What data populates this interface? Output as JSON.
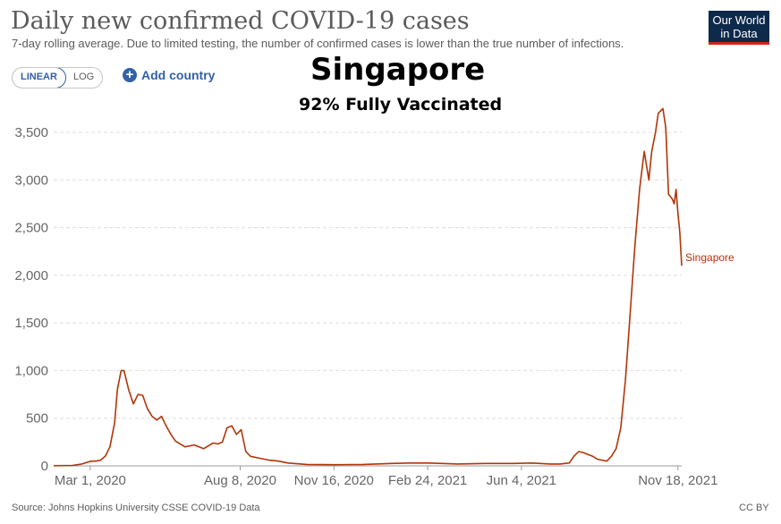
{
  "header": {
    "title": "Daily new confirmed COVID-19 cases",
    "subtitle": "7-day rolling average. Due to limited testing, the number of confirmed cases is lower than the true number of infections.",
    "logo_line1": "Our World",
    "logo_line2": "in Data"
  },
  "controls": {
    "linear_label": "LINEAR",
    "log_label": "LOG",
    "add_country_label": "Add country",
    "add_icon": "plus-circle-icon"
  },
  "overlay": {
    "heading": "Singapore",
    "subheading": "92% Fully Vaccinated"
  },
  "footer": {
    "source": "Source: Johns Hopkins University CSSE COVID-19 Data",
    "license": "CC BY"
  },
  "colors": {
    "series": "#b13507",
    "accent": "#3360a9",
    "grid": "#dddddd"
  },
  "chart_data": {
    "type": "line",
    "title": "Daily new confirmed COVID-19 cases",
    "xlabel": "",
    "ylabel": "",
    "ylim": [
      0,
      3500
    ],
    "yticks": [
      0,
      500,
      1000,
      1500,
      2000,
      2500,
      3000,
      3500
    ],
    "ytick_labels": [
      "0",
      "500",
      "1,000",
      "1,500",
      "2,000",
      "2,500",
      "3,000",
      "3,500"
    ],
    "xticks": [
      {
        "label": "Mar 1, 2020",
        "day": 39
      },
      {
        "label": "Aug 8, 2020",
        "day": 199
      },
      {
        "label": "Nov 16, 2020",
        "day": 299
      },
      {
        "label": "Feb 24, 2021",
        "day": 399
      },
      {
        "label": "Jun 4, 2021",
        "day": 499
      },
      {
        "label": "Nov 18, 2021",
        "day": 666
      }
    ],
    "x_unit": "days since Jan 22, 2020",
    "series": [
      {
        "name": "Singapore",
        "x": [
          0,
          20,
          30,
          40,
          45,
          50,
          55,
          60,
          65,
          68,
          72,
          75,
          80,
          85,
          90,
          95,
          100,
          105,
          110,
          115,
          120,
          125,
          130,
          140,
          150,
          160,
          170,
          175,
          180,
          185,
          190,
          195,
          200,
          205,
          210,
          220,
          230,
          240,
          250,
          270,
          300,
          330,
          360,
          380,
          400,
          430,
          460,
          490,
          510,
          530,
          540,
          550,
          555,
          560,
          565,
          570,
          575,
          580,
          585,
          590,
          595,
          600,
          605,
          610,
          615,
          620,
          625,
          630,
          635,
          638,
          642,
          645,
          650,
          653,
          656,
          660,
          662,
          664,
          666,
          668,
          670
        ],
        "y": [
          2,
          5,
          20,
          50,
          50,
          60,
          100,
          200,
          450,
          800,
          1000,
          1000,
          800,
          650,
          750,
          740,
          600,
          520,
          480,
          520,
          420,
          330,
          260,
          200,
          220,
          180,
          240,
          230,
          250,
          400,
          420,
          330,
          380,
          150,
          100,
          80,
          60,
          50,
          30,
          15,
          12,
          15,
          25,
          30,
          30,
          20,
          25,
          25,
          30,
          20,
          20,
          30,
          100,
          150,
          140,
          120,
          100,
          70,
          60,
          50,
          100,
          180,
          400,
          900,
          1600,
          2300,
          2900,
          3300,
          3000,
          3300,
          3500,
          3700,
          3750,
          3550,
          2850,
          2800,
          2750,
          2900,
          2650,
          2450,
          2100
        ]
      }
    ]
  }
}
